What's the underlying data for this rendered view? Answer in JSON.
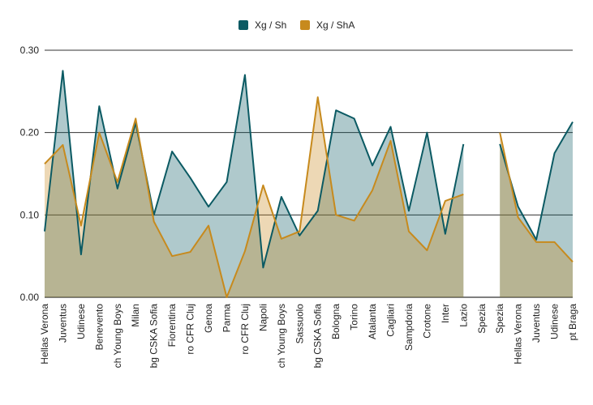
{
  "chart_data": {
    "type": "area",
    "categories": [
      "Hellas Verona",
      "Juventus",
      "Udinese",
      "Benevento",
      "ch Young Boys",
      "Milan",
      "bg CSKA Sofia",
      "Fiorentina",
      "ro CFR Cluj",
      "Genoa",
      "Parma",
      "ro CFR Cluj",
      "Napoli",
      "ch Young Boys",
      "Sassuolo",
      "bg CSKA Sofia",
      "Bologna",
      "Torino",
      "Atalanta",
      "Cagliari",
      "Sampdoria",
      "Crotone",
      "Inter",
      "Lazio",
      "Spezia",
      "Spezia",
      "Hellas Verona",
      "Juventus",
      "Udinese",
      "pt Braga"
    ],
    "series": [
      {
        "name": "Xg / Sh",
        "color": "#0b5a63",
        "fill": "#a3c3c8",
        "values": [
          0.08,
          0.275,
          0.052,
          0.232,
          0.132,
          0.212,
          0.1,
          0.177,
          0.145,
          0.11,
          0.14,
          0.27,
          0.036,
          0.122,
          0.075,
          0.105,
          0.227,
          0.217,
          0.16,
          0.207,
          0.105,
          0.2,
          0.077,
          0.186,
          null,
          0.186,
          0.11,
          0.07,
          0.175,
          0.213
        ]
      },
      {
        "name": "Xg / ShA",
        "color": "#c78a1d",
        "fill": "#efd8b4",
        "values": [
          0.162,
          0.185,
          0.087,
          0.2,
          0.14,
          0.217,
          0.092,
          0.05,
          0.055,
          0.087,
          0.0,
          0.056,
          0.136,
          0.071,
          0.08,
          0.243,
          0.1,
          0.093,
          0.13,
          0.19,
          0.08,
          0.057,
          0.117,
          0.125,
          null,
          0.2,
          0.097,
          0.067,
          0.067,
          0.043
        ]
      }
    ],
    "yticks": [
      "0.00",
      "0.10",
      "0.20",
      "0.30"
    ],
    "ylim": [
      0,
      0.3
    ],
    "grid": true,
    "legend": "top"
  }
}
